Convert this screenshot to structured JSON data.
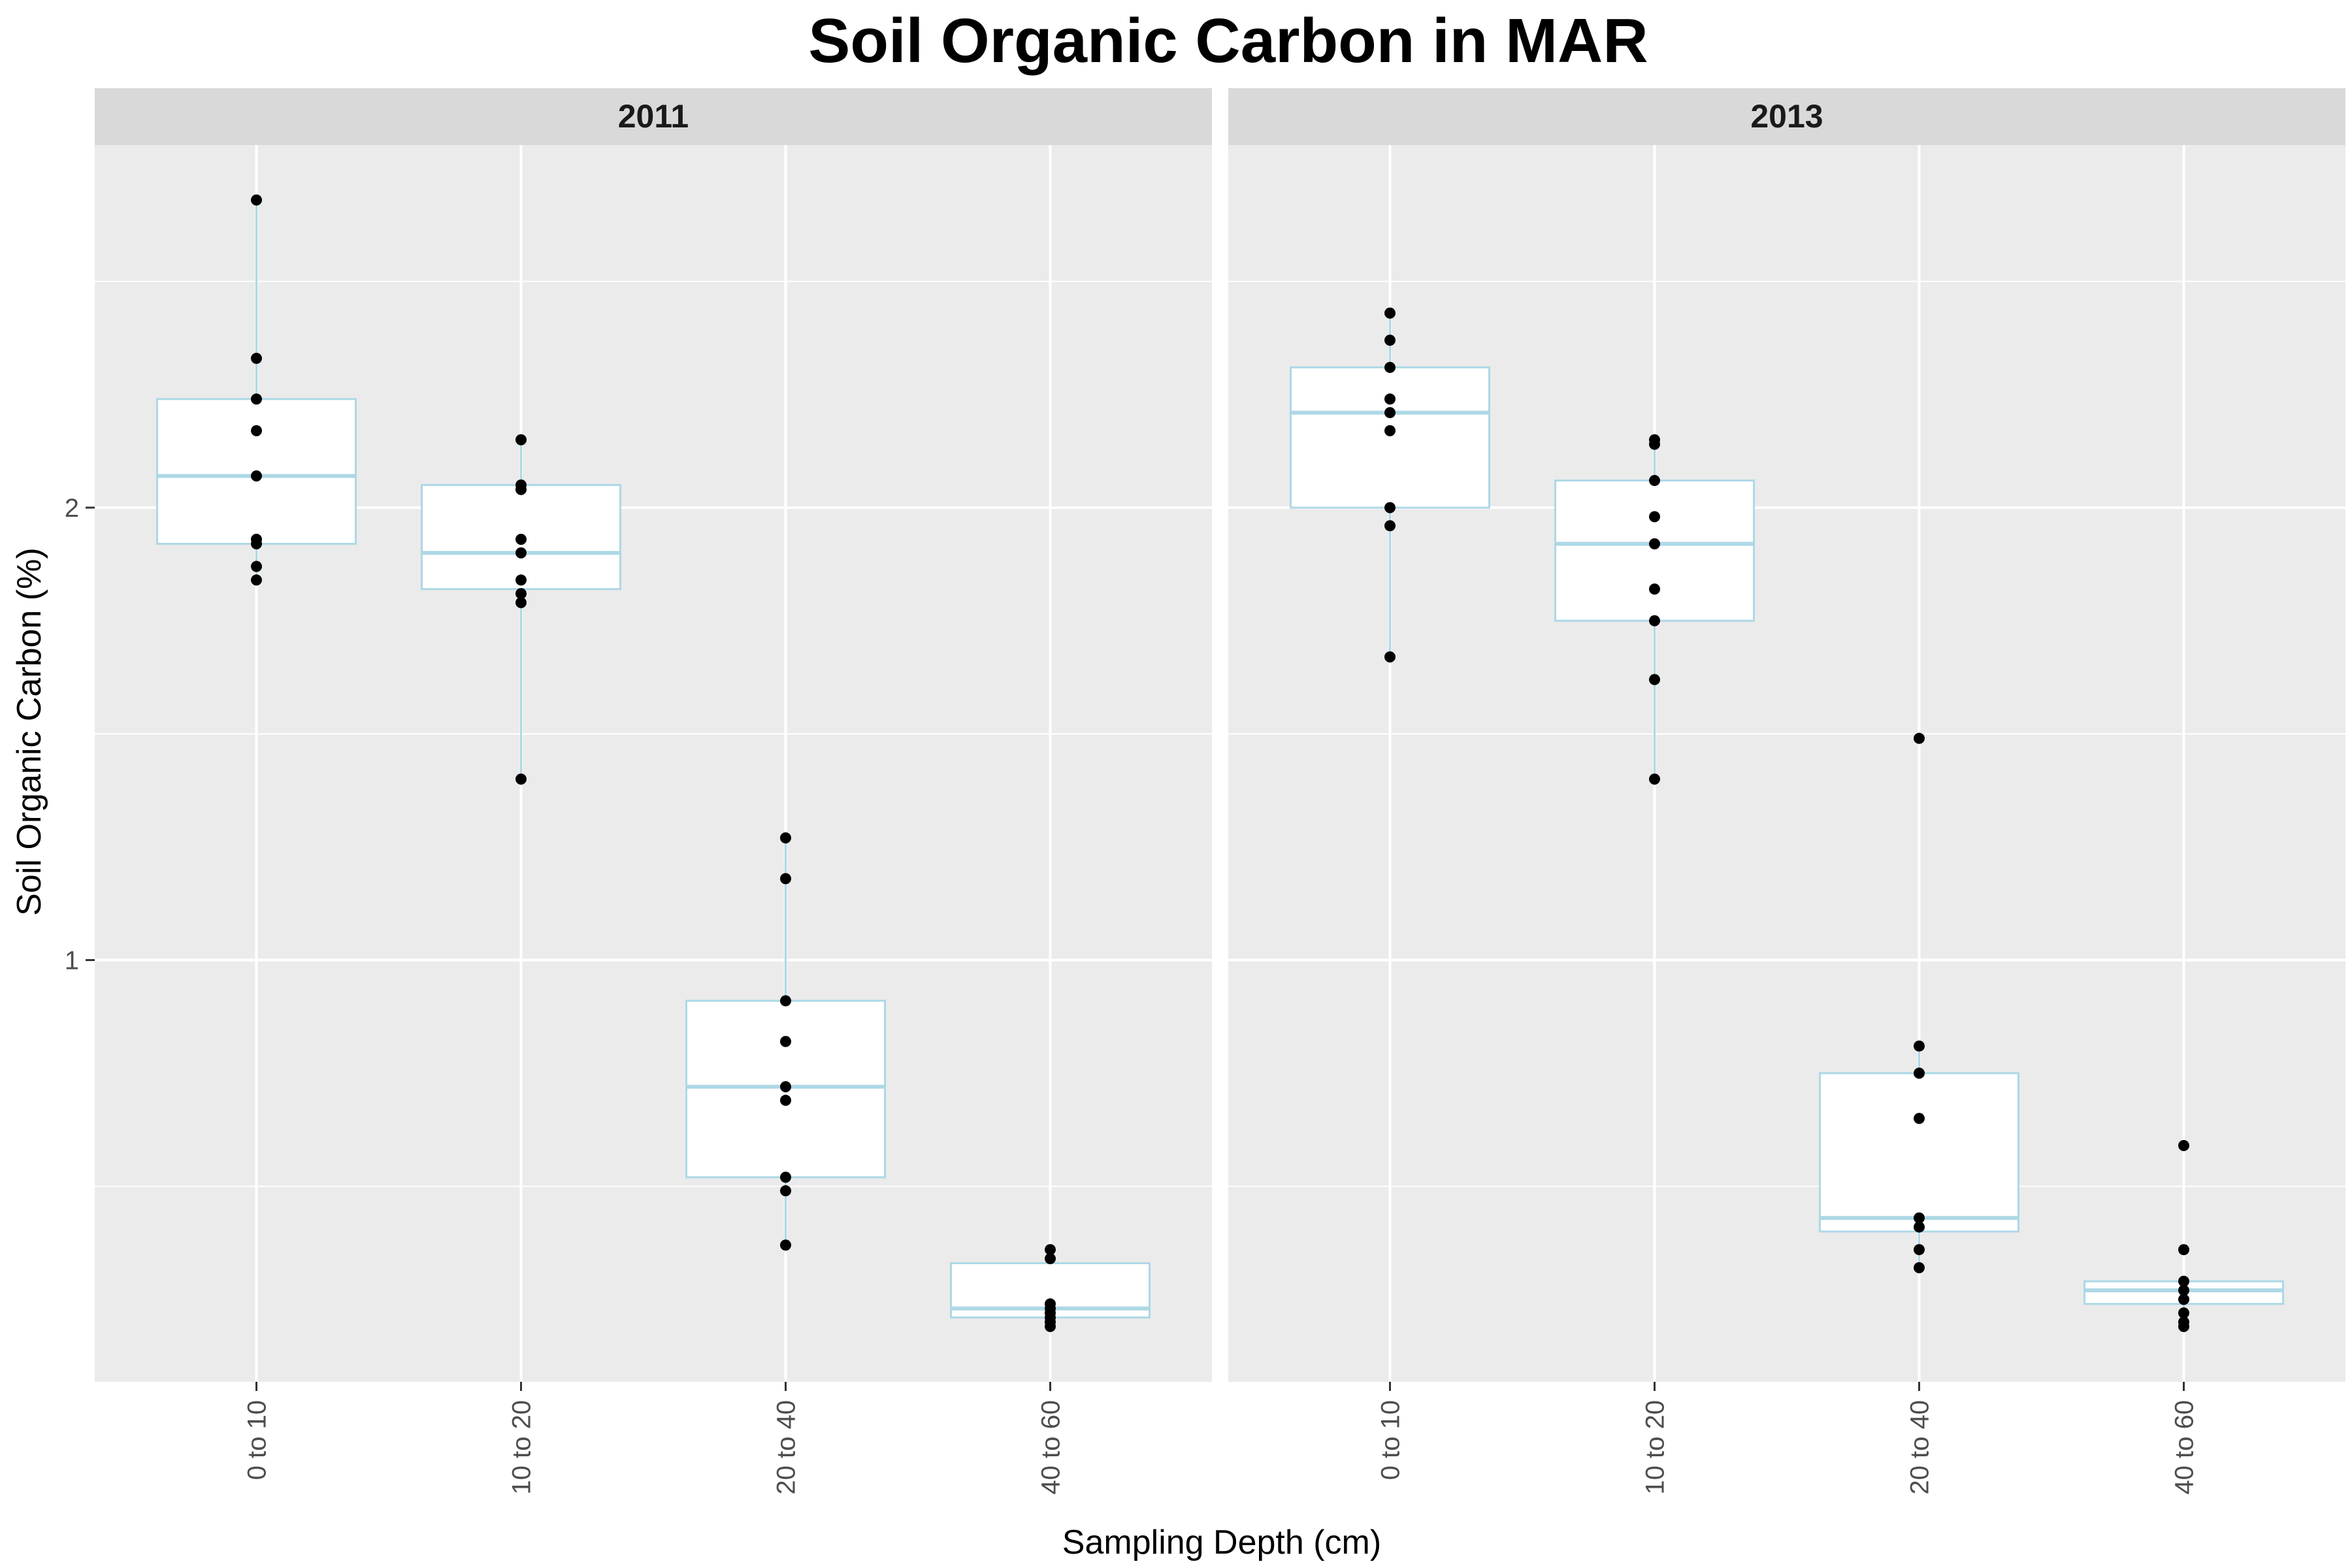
{
  "chart_data": {
    "type": "box",
    "title": "Soil Organic Carbon in MAR",
    "xlabel": "Sampling Depth (cm)",
    "ylabel": "Soil Organic Carbon (%)",
    "ylim": [
      0.07,
      2.8
    ],
    "yticks": [
      1,
      2
    ],
    "categories": [
      "0 to 10",
      "10 to 20",
      "20 to 40",
      "40 to 60"
    ],
    "grid": true,
    "box_color": "#add8e6",
    "point_color": "#000000",
    "panel_background": "#ebebeb",
    "strip_background": "#d9d9d9",
    "facets": [
      {
        "label": "2011",
        "boxes": [
          {
            "category": "0 to 10",
            "whisker_low": 1.84,
            "q1": 1.92,
            "median": 2.07,
            "q3": 2.24,
            "whisker_high": 2.68
          },
          {
            "category": "10 to 20",
            "whisker_low": 1.4,
            "q1": 1.82,
            "median": 1.9,
            "q3": 2.05,
            "whisker_high": 2.15
          },
          {
            "category": "20 to 40",
            "whisker_low": 0.37,
            "q1": 0.52,
            "median": 0.72,
            "q3": 0.91,
            "whisker_high": 1.27
          },
          {
            "category": "40 to 60",
            "whisker_low": 0.19,
            "q1": 0.21,
            "median": 0.23,
            "q3": 0.33,
            "whisker_high": 0.36
          }
        ],
        "points": [
          {
            "category": "0 to 10",
            "values": [
              2.68,
              2.33,
              2.24,
              2.17,
              2.07,
              1.93,
              1.92,
              1.87,
              1.84
            ]
          },
          {
            "category": "10 to 20",
            "values": [
              2.15,
              2.05,
              2.04,
              1.93,
              1.9,
              1.84,
              1.81,
              1.79,
              1.4
            ]
          },
          {
            "category": "20 to 40",
            "values": [
              1.27,
              1.18,
              0.91,
              0.82,
              0.72,
              0.69,
              0.52,
              0.49,
              0.37
            ]
          },
          {
            "category": "40 to 60",
            "values": [
              0.36,
              0.34,
              0.24,
              0.23,
              0.22,
              0.21,
              0.2,
              0.19
            ]
          }
        ]
      },
      {
        "label": "2013",
        "boxes": [
          {
            "category": "0 to 10",
            "whisker_low": 1.67,
            "q1": 2.0,
            "median": 2.21,
            "q3": 2.31,
            "whisker_high": 2.43
          },
          {
            "category": "10 to 20",
            "whisker_low": 1.4,
            "q1": 1.75,
            "median": 1.92,
            "q3": 2.06,
            "whisker_high": 2.15
          },
          {
            "category": "20 to 40",
            "whisker_low": 0.32,
            "q1": 0.4,
            "median": 0.43,
            "q3": 0.75,
            "whisker_high": 0.81
          },
          {
            "category": "40 to 60",
            "whisker_low": 0.19,
            "q1": 0.24,
            "median": 0.27,
            "q3": 0.29,
            "whisker_high": 0.29
          }
        ],
        "points": [
          {
            "category": "0 to 10",
            "values": [
              2.43,
              2.37,
              2.31,
              2.24,
              2.21,
              2.17,
              2.0,
              1.96,
              1.67
            ]
          },
          {
            "category": "10 to 20",
            "values": [
              2.15,
              2.14,
              2.06,
              1.98,
              1.92,
              1.82,
              1.75,
              1.62,
              1.4
            ]
          },
          {
            "category": "20 to 40",
            "values": [
              1.49,
              0.81,
              0.75,
              0.65,
              0.43,
              0.41,
              0.36,
              0.32
            ]
          },
          {
            "category": "40 to 60",
            "values": [
              0.59,
              0.36,
              0.29,
              0.27,
              0.25,
              0.22,
              0.2,
              0.19
            ]
          }
        ]
      }
    ]
  }
}
